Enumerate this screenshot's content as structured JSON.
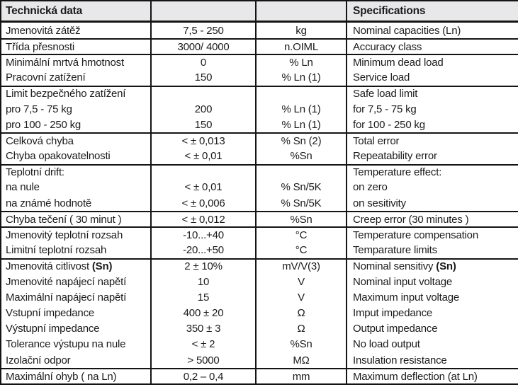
{
  "table": {
    "colors": {
      "header_bg": "#e8e8ea",
      "line": "#141414",
      "text": "#1b1b1d"
    },
    "header": {
      "czech_title": "Technická data",
      "english_title": "Specifications"
    },
    "rows": [
      {
        "cs": "Jmenovitá zátěž",
        "value": "7,5 - 250",
        "unit": "kg",
        "en": "Nominal capacities (Ln)",
        "sep": false
      },
      {
        "cs": "Třída přesnosti",
        "value": "3000/ 4000",
        "unit": "n.OIML",
        "en": "Accuracy class",
        "sep": true
      },
      {
        "cs": "Minimální mrtvá hmotnost",
        "value": "0",
        "unit": "% Ln",
        "en": "Minimum dead load",
        "sep": true
      },
      {
        "cs": "Pracovní zatížení",
        "value": "150",
        "unit": "% Ln (1)",
        "en": "Service load",
        "sep": false
      },
      {
        "cs": "Limit bezpečného zatížení",
        "value": "",
        "unit": "",
        "en": "Safe load limit",
        "sep": true
      },
      {
        "cs": "pro 7,5 - 75 kg",
        "value": "200",
        "unit": "% Ln (1)",
        "en": "for 7,5 - 75 kg",
        "sep": false
      },
      {
        "cs": "pro 100 - 250 kg",
        "value": "150",
        "unit": "% Ln (1)",
        "en": "for 100 - 250 kg",
        "sep": false
      },
      {
        "cs": "Celková chyba",
        "value": "< ± 0,013",
        "unit": "% Sn (2)",
        "en": "Total error",
        "sep": true
      },
      {
        "cs": "Chyba opakovatelnosti",
        "value": "< ± 0,01",
        "unit": "%Sn",
        "en": "Repeatability error",
        "sep": false
      },
      {
        "cs": "Teplotní drift:",
        "value": "",
        "unit": "",
        "en": "Temperature effect:",
        "sep": true
      },
      {
        "cs": "na nule",
        "value": "< ± 0,01",
        "unit": "% Sn/5K",
        "en": "on zero",
        "sep": false
      },
      {
        "cs": "na známé hodnotě",
        "value": "< ± 0,006",
        "unit": "% Sn/5K",
        "en": "on sesitivity",
        "sep": false
      },
      {
        "cs": "Chyba tečení ( 30 minut )",
        "value": "< ± 0,012",
        "unit": "%Sn",
        "en": "Creep error (30 minutes )",
        "sep": true
      },
      {
        "cs": "Jmenovitý teplotní rozsah",
        "value": "-10...+40",
        "unit": "°C",
        "en": "Temperature compensation",
        "sep": true
      },
      {
        "cs": "Limitní teplotní rozsah",
        "value": "-20...+50",
        "unit": "°C",
        "en": "Temparature limits",
        "sep": false
      },
      {
        "cs": "Jmenovitá citlivost ",
        "cs_b": "(Sn)",
        "value": "2 ± 10%",
        "unit": "mV/V(3)",
        "en": "Nominal sensitivy ",
        "en_b": "(Sn)",
        "sep": true
      },
      {
        "cs": "Jmenovité napájecí napětí",
        "value": "10",
        "unit": "V",
        "en": "Nominal input voltage",
        "sep": false
      },
      {
        "cs": "Maximální napájecí napětí",
        "value": "15",
        "unit": "V",
        "en": "Maximum input voltage",
        "sep": false
      },
      {
        "cs": "Vstupní impedance",
        "value": "400 ± 20",
        "unit": "Ω",
        "en": "Imput impedance",
        "sep": false
      },
      {
        "cs": "Výstupní impedance",
        "value": "350 ± 3",
        "unit": "Ω",
        "en": "Output impedance",
        "sep": false
      },
      {
        "cs": "Tolerance výstupu na nule",
        "value": "< ± 2",
        "unit": "%Sn",
        "en": "No load output",
        "sep": false
      },
      {
        "cs": "Izolační odpor",
        "value": "> 5000",
        "unit": "MΩ",
        "en": "Insulation resistance",
        "sep": false
      },
      {
        "cs": "Maximální ohyb ( na Ln)",
        "value": "0,2 – 0,4",
        "unit": "mm",
        "en": "Maximum deflection (at Ln)",
        "sep": true
      }
    ]
  }
}
